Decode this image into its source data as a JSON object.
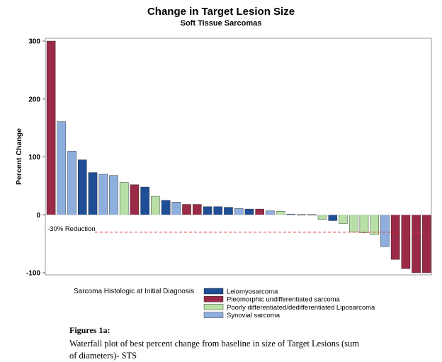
{
  "chart_data": {
    "type": "bar",
    "title": "Change in Target Lesion Size",
    "subtitle": "Soft Tissue Sarcomas",
    "ylabel": "Percent Change",
    "xlabel": "",
    "ylim": [
      -100,
      300
    ],
    "yticks": [
      "300",
      "200",
      "100",
      "0",
      "-100"
    ],
    "grid": false,
    "reference_line": {
      "value": -30,
      "label": "-30% Reduction",
      "color": "#d9302a"
    },
    "legend": {
      "title": "Sarcoma Histologic at Initial Diagnosis",
      "placement": "bottom",
      "entries": [
        {
          "key": "LMS",
          "label": "Leiomyosarcoma",
          "color": "#1f4e96"
        },
        {
          "key": "UPS",
          "label": "Pleomorphic undifferentiated sarcoma",
          "color": "#9b2a47"
        },
        {
          "key": "LPS",
          "label": "Poorly differentiated/dedifferentiated Liposarcoma",
          "color": "#b8e0a6"
        },
        {
          "key": "SS",
          "label": "Synovial sarcoma",
          "color": "#8eaede"
        }
      ]
    },
    "bars": [
      {
        "value": 300,
        "group": "UPS"
      },
      {
        "value": 161,
        "group": "SS"
      },
      {
        "value": 110,
        "group": "SS"
      },
      {
        "value": 95,
        "group": "LMS"
      },
      {
        "value": 73,
        "group": "LMS"
      },
      {
        "value": 70,
        "group": "SS"
      },
      {
        "value": 68,
        "group": "SS"
      },
      {
        "value": 56,
        "group": "LPS"
      },
      {
        "value": 52,
        "group": "UPS"
      },
      {
        "value": 48,
        "group": "LMS"
      },
      {
        "value": 32,
        "group": "LPS"
      },
      {
        "value": 25,
        "group": "LMS"
      },
      {
        "value": 22,
        "group": "SS"
      },
      {
        "value": 18,
        "group": "UPS"
      },
      {
        "value": 18,
        "group": "UPS"
      },
      {
        "value": 14,
        "group": "LMS"
      },
      {
        "value": 14,
        "group": "LMS"
      },
      {
        "value": 13,
        "group": "LMS"
      },
      {
        "value": 11,
        "group": "SS"
      },
      {
        "value": 10,
        "group": "LMS"
      },
      {
        "value": 10,
        "group": "UPS"
      },
      {
        "value": 7,
        "group": "SS"
      },
      {
        "value": 6,
        "group": "LPS"
      },
      {
        "value": 1,
        "group": "LMS"
      },
      {
        "value": 0.5,
        "group": "LMS"
      },
      {
        "value": 0.5,
        "group": "LMS"
      },
      {
        "value": -8,
        "group": "LPS"
      },
      {
        "value": -10,
        "group": "LMS"
      },
      {
        "value": -15,
        "group": "LPS"
      },
      {
        "value": -30,
        "group": "LPS"
      },
      {
        "value": -31,
        "group": "LPS"
      },
      {
        "value": -34,
        "group": "LPS"
      },
      {
        "value": -55,
        "group": "SS"
      },
      {
        "value": -77,
        "group": "UPS"
      },
      {
        "value": -93,
        "group": "UPS"
      },
      {
        "value": -100,
        "group": "UPS"
      },
      {
        "value": -100,
        "group": "UPS"
      }
    ]
  },
  "caption": {
    "title": "Figures 1a:",
    "text": "Waterfall plot of best percent change from baseline in size of Target Lesions (sum of diameters)- STS"
  }
}
